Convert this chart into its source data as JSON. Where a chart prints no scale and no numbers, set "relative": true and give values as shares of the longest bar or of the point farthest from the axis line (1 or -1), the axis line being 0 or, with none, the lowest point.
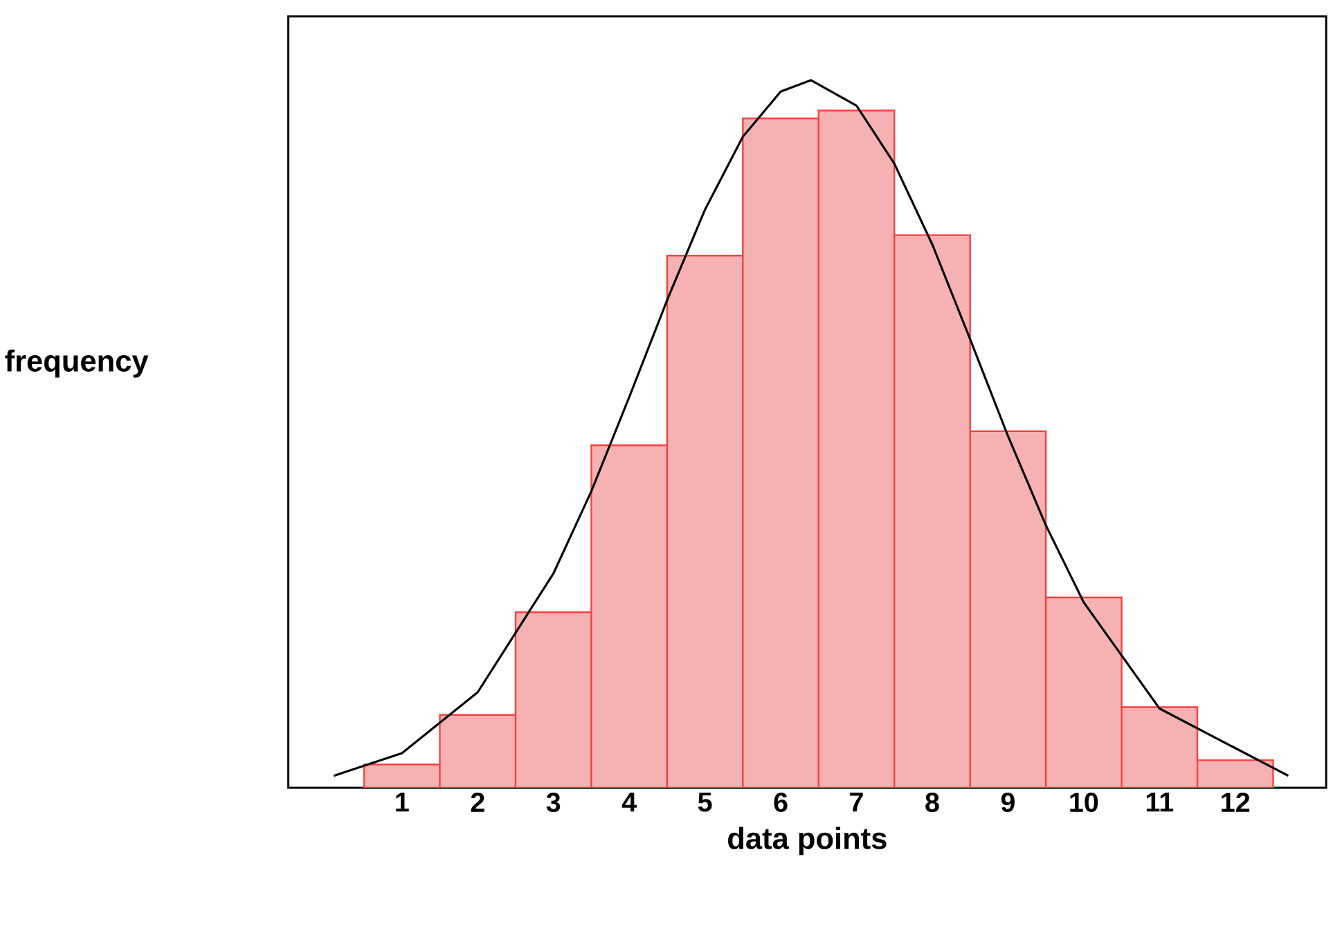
{
  "chart_data": {
    "type": "histogram",
    "xlabel": "data points",
    "ylabel": "frequency",
    "relative": true,
    "bins": [
      0.5,
      1.5,
      2.5,
      3.5,
      4.5,
      5.5,
      6.5,
      7.5,
      8.5,
      9.5,
      10.5,
      11.5,
      12.5
    ],
    "xlim": [
      -0.5,
      13.2
    ],
    "xticks": [
      1,
      2,
      3,
      4,
      5,
      6,
      7,
      8,
      9,
      10,
      11,
      12
    ],
    "series": [
      {
        "color": "#f6b2b2",
        "values": [
          0.033,
          0.103,
          0.248,
          0.484,
          0.752,
          0.946,
          0.957,
          0.781,
          0.504,
          0.269,
          0.114,
          0.039
        ]
      },
      {
        "type": "line",
        "color": "#000000",
        "x": [
          0.1,
          1,
          2,
          3,
          3.5,
          4,
          4.5,
          5,
          5.5,
          6,
          6.4,
          7,
          7.5,
          8,
          8.5,
          9,
          9.5,
          10,
          11,
          12.7
        ],
        "values": [
          0.017,
          0.049,
          0.135,
          0.303,
          0.419,
          0.552,
          0.689,
          0.817,
          0.92,
          0.984,
          1,
          0.964,
          0.882,
          0.768,
          0.634,
          0.497,
          0.371,
          0.262,
          0.112,
          0.017
        ]
      }
    ]
  }
}
